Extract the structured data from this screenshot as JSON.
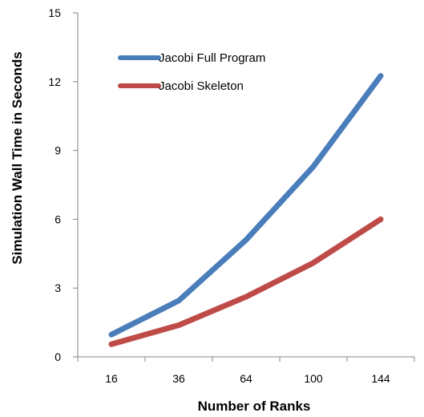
{
  "chart_data": {
    "type": "line",
    "title": "",
    "xlabel": "Number of Ranks",
    "ylabel": "Simulation Wall Time in Seconds",
    "categories": [
      "16",
      "36",
      "64",
      "100",
      "144"
    ],
    "ylim": [
      0,
      15
    ],
    "yticks": [
      "0",
      "3",
      "6",
      "9",
      "12",
      "15"
    ],
    "grid": false,
    "legend_position": "top-left",
    "series": [
      {
        "name": "Jacobi Full Program",
        "color": "#4A7EBB",
        "values": [
          0.97,
          2.45,
          5.1,
          8.3,
          12.25
        ]
      },
      {
        "name": "Jacobi Skeleton",
        "color": "#BE4B48",
        "values": [
          0.55,
          1.38,
          2.62,
          4.1,
          6.0
        ]
      }
    ]
  }
}
